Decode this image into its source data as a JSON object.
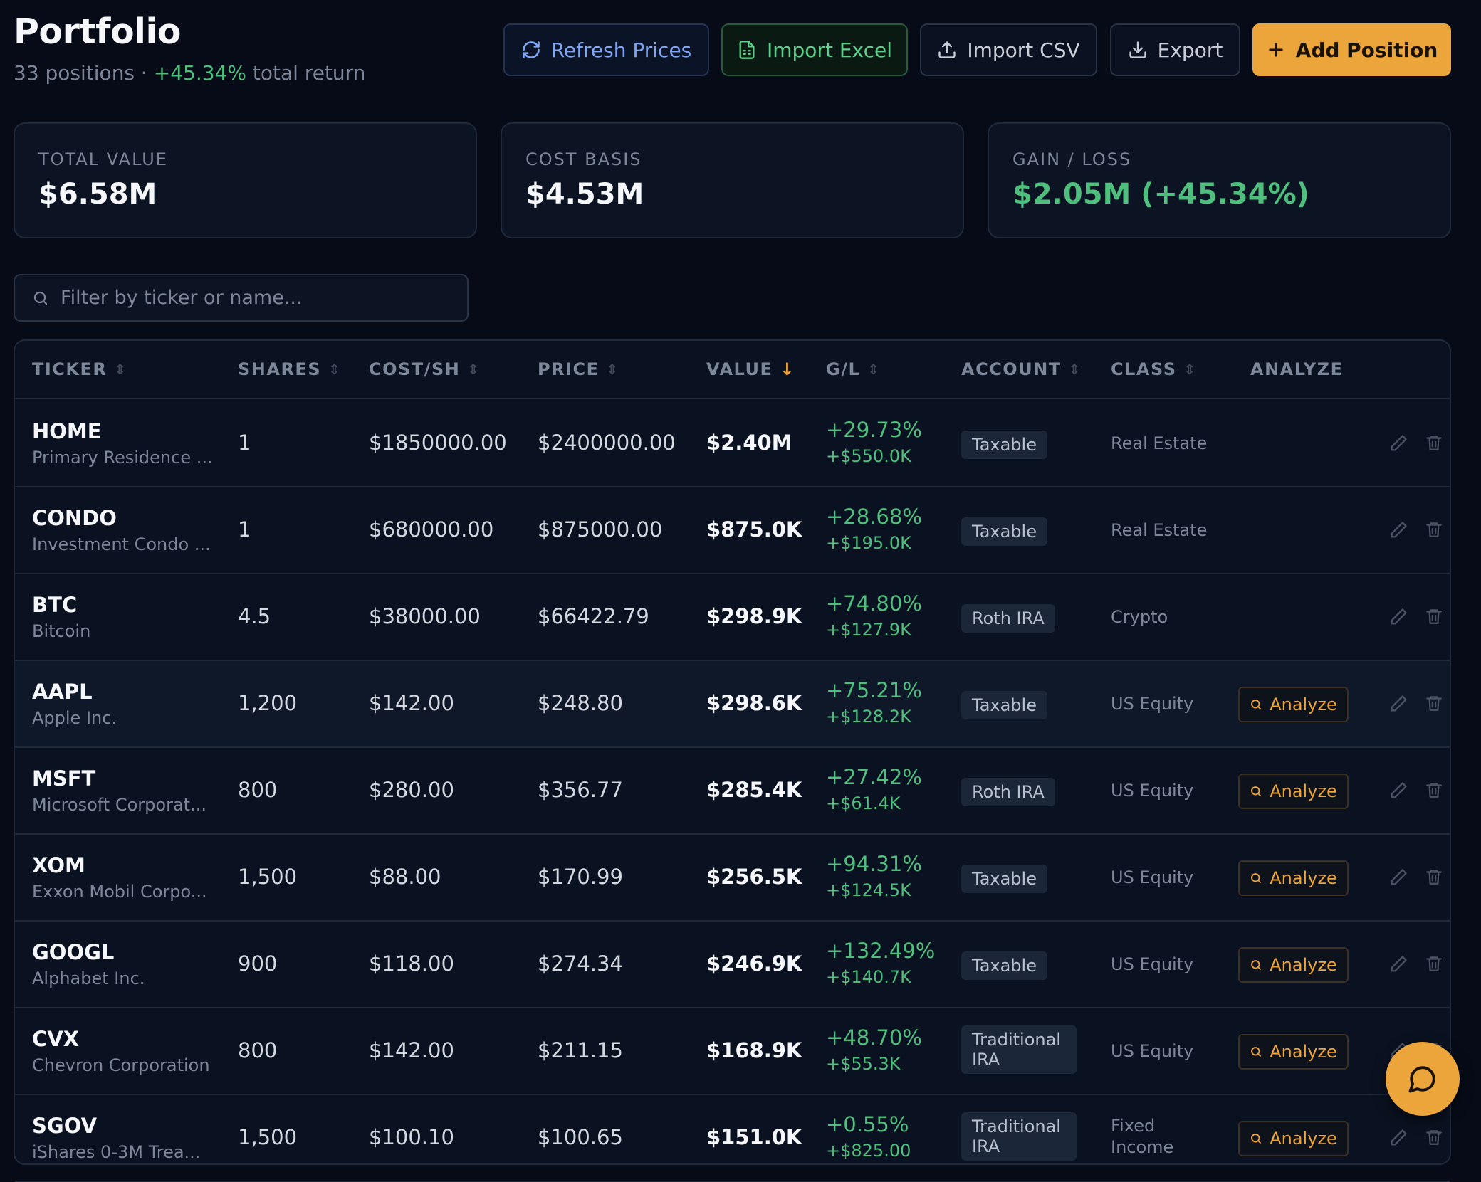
{
  "header": {
    "title": "Portfolio",
    "subtitle_prefix": "33 positions · ",
    "subtitle_return": "+45.34%",
    "subtitle_suffix": " total return"
  },
  "toolbar": {
    "refresh_label": "Refresh Prices",
    "import_excel_label": "Import Excel",
    "import_csv_label": "Import CSV",
    "export_label": "Export",
    "add_label": "Add Position"
  },
  "stats": {
    "total_value_label": "TOTAL VALUE",
    "total_value": "$6.58M",
    "cost_basis_label": "COST BASIS",
    "cost_basis": "$4.53M",
    "gain_loss_label": "GAIN / LOSS",
    "gain_loss": "$2.05M (+45.34%)"
  },
  "filter": {
    "placeholder": "Filter by ticker or name..."
  },
  "table": {
    "columns": [
      "TICKER",
      "SHARES",
      "COST/SH",
      "PRICE",
      "VALUE",
      "G/L",
      "ACCOUNT",
      "CLASS",
      "ANALYZE"
    ],
    "sorted_column": "VALUE",
    "analyze_label": "Analyze",
    "rows": [
      {
        "ticker": "HOME",
        "name": "Primary Residence ...",
        "shares": "1",
        "cost": "$1850000.00",
        "price": "$2400000.00",
        "value": "$2.40M",
        "gl_pct": "+29.73%",
        "gl_amt": "+$550.0K",
        "account": "Taxable",
        "class": "Real Estate",
        "analyze": false
      },
      {
        "ticker": "CONDO",
        "name": "Investment Condo ...",
        "shares": "1",
        "cost": "$680000.00",
        "price": "$875000.00",
        "value": "$875.0K",
        "gl_pct": "+28.68%",
        "gl_amt": "+$195.0K",
        "account": "Taxable",
        "class": "Real Estate",
        "analyze": false
      },
      {
        "ticker": "BTC",
        "name": "Bitcoin",
        "shares": "4.5",
        "cost": "$38000.00",
        "price": "$66422.79",
        "value": "$298.9K",
        "gl_pct": "+74.80%",
        "gl_amt": "+$127.9K",
        "account": "Roth IRA",
        "class": "Crypto",
        "analyze": false
      },
      {
        "ticker": "AAPL",
        "name": "Apple Inc.",
        "shares": "1,200",
        "cost": "$142.00",
        "price": "$248.80",
        "value": "$298.6K",
        "gl_pct": "+75.21%",
        "gl_amt": "+$128.2K",
        "account": "Taxable",
        "class": "US Equity",
        "analyze": true
      },
      {
        "ticker": "MSFT",
        "name": "Microsoft Corporat...",
        "shares": "800",
        "cost": "$280.00",
        "price": "$356.77",
        "value": "$285.4K",
        "gl_pct": "+27.42%",
        "gl_amt": "+$61.4K",
        "account": "Roth IRA",
        "class": "US Equity",
        "analyze": true
      },
      {
        "ticker": "XOM",
        "name": "Exxon Mobil Corpo...",
        "shares": "1,500",
        "cost": "$88.00",
        "price": "$170.99",
        "value": "$256.5K",
        "gl_pct": "+94.31%",
        "gl_amt": "+$124.5K",
        "account": "Taxable",
        "class": "US Equity",
        "analyze": true
      },
      {
        "ticker": "GOOGL",
        "name": "Alphabet Inc.",
        "shares": "900",
        "cost": "$118.00",
        "price": "$274.34",
        "value": "$246.9K",
        "gl_pct": "+132.49%",
        "gl_amt": "+$140.7K",
        "account": "Taxable",
        "class": "US Equity",
        "analyze": true
      },
      {
        "ticker": "CVX",
        "name": "Chevron Corporation",
        "shares": "800",
        "cost": "$142.00",
        "price": "$211.15",
        "value": "$168.9K",
        "gl_pct": "+48.70%",
        "gl_amt": "+$55.3K",
        "account": "Traditional IRA",
        "class": "US Equity",
        "analyze": true
      },
      {
        "ticker": "SGOV",
        "name": "iShares 0-3M Trea...",
        "shares": "1,500",
        "cost": "$100.10",
        "price": "$100.65",
        "value": "$151.0K",
        "gl_pct": "+0.55%",
        "gl_amt": "+$825.00",
        "account": "Traditional IRA",
        "class": "Fixed Income",
        "analyze": true
      }
    ]
  },
  "colors": {
    "background": "#060b17",
    "accent": "#eba53a",
    "positive": "#4fbf7d",
    "link": "#7ea6f3"
  },
  "icons": {
    "refresh": "refresh-icon",
    "excel": "file-spreadsheet-icon",
    "csv": "upload-icon",
    "export": "download-icon",
    "add": "plus-icon",
    "search": "search-icon",
    "edit": "pencil-icon",
    "delete": "trash-icon",
    "chat": "chat-bubble-icon"
  }
}
